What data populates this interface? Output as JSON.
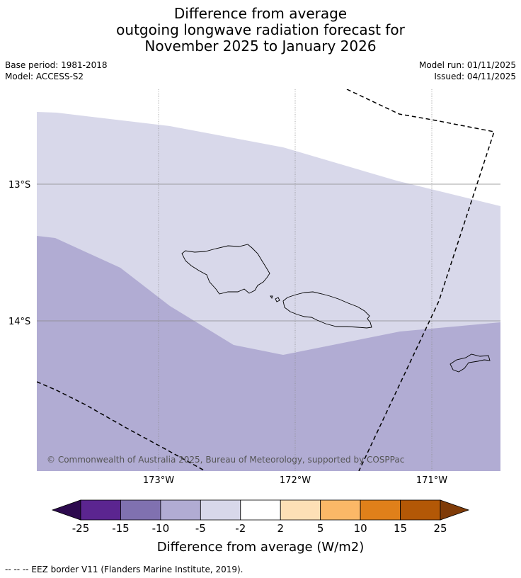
{
  "title": {
    "line1": "Difference from average",
    "line2": "outgoing longwave radiation forecast for",
    "line3": "November 2025 to January 2026"
  },
  "meta_left": {
    "base_period": "Base period: 1981-2018",
    "model": "Model: ACCESS-S2"
  },
  "meta_right": {
    "model_run": "Model run: 01/11/2025",
    "issued": "Issued: 04/11/2025"
  },
  "map": {
    "lat_labels": [
      "13°S",
      "14°S"
    ],
    "lon_labels": [
      "173°W",
      "172°W",
      "171°W"
    ],
    "copyright": "© Commonwealth of Australia 2025, Bureau of Meteorology, supported by COSPPac",
    "fill_colors": {
      "light": "#d8d8ea",
      "mid": "#b1acd3"
    },
    "features": [
      "Savai'i coastline",
      "Upolu coastline",
      "Tutuila coastline",
      "EEZ border"
    ]
  },
  "colorbar": {
    "label": "Difference from average (W/m2)",
    "ticks": [
      "-25",
      "-15",
      "-10",
      "-5",
      "-2",
      "2",
      "5",
      "10",
      "15",
      "25"
    ],
    "colors": [
      "#5b2590",
      "#8071b0",
      "#b1acd3",
      "#d8d8ea",
      "#ffffff",
      "#fde0b6",
      "#fbb867",
      "#e0801a",
      "#b35806"
    ],
    "extend_low_color": "#2d0a4e",
    "extend_high_color": "#7f3b08"
  },
  "footnote": "--  --  -- EEZ border V11 (Flanders Marine Institute, 2019)."
}
